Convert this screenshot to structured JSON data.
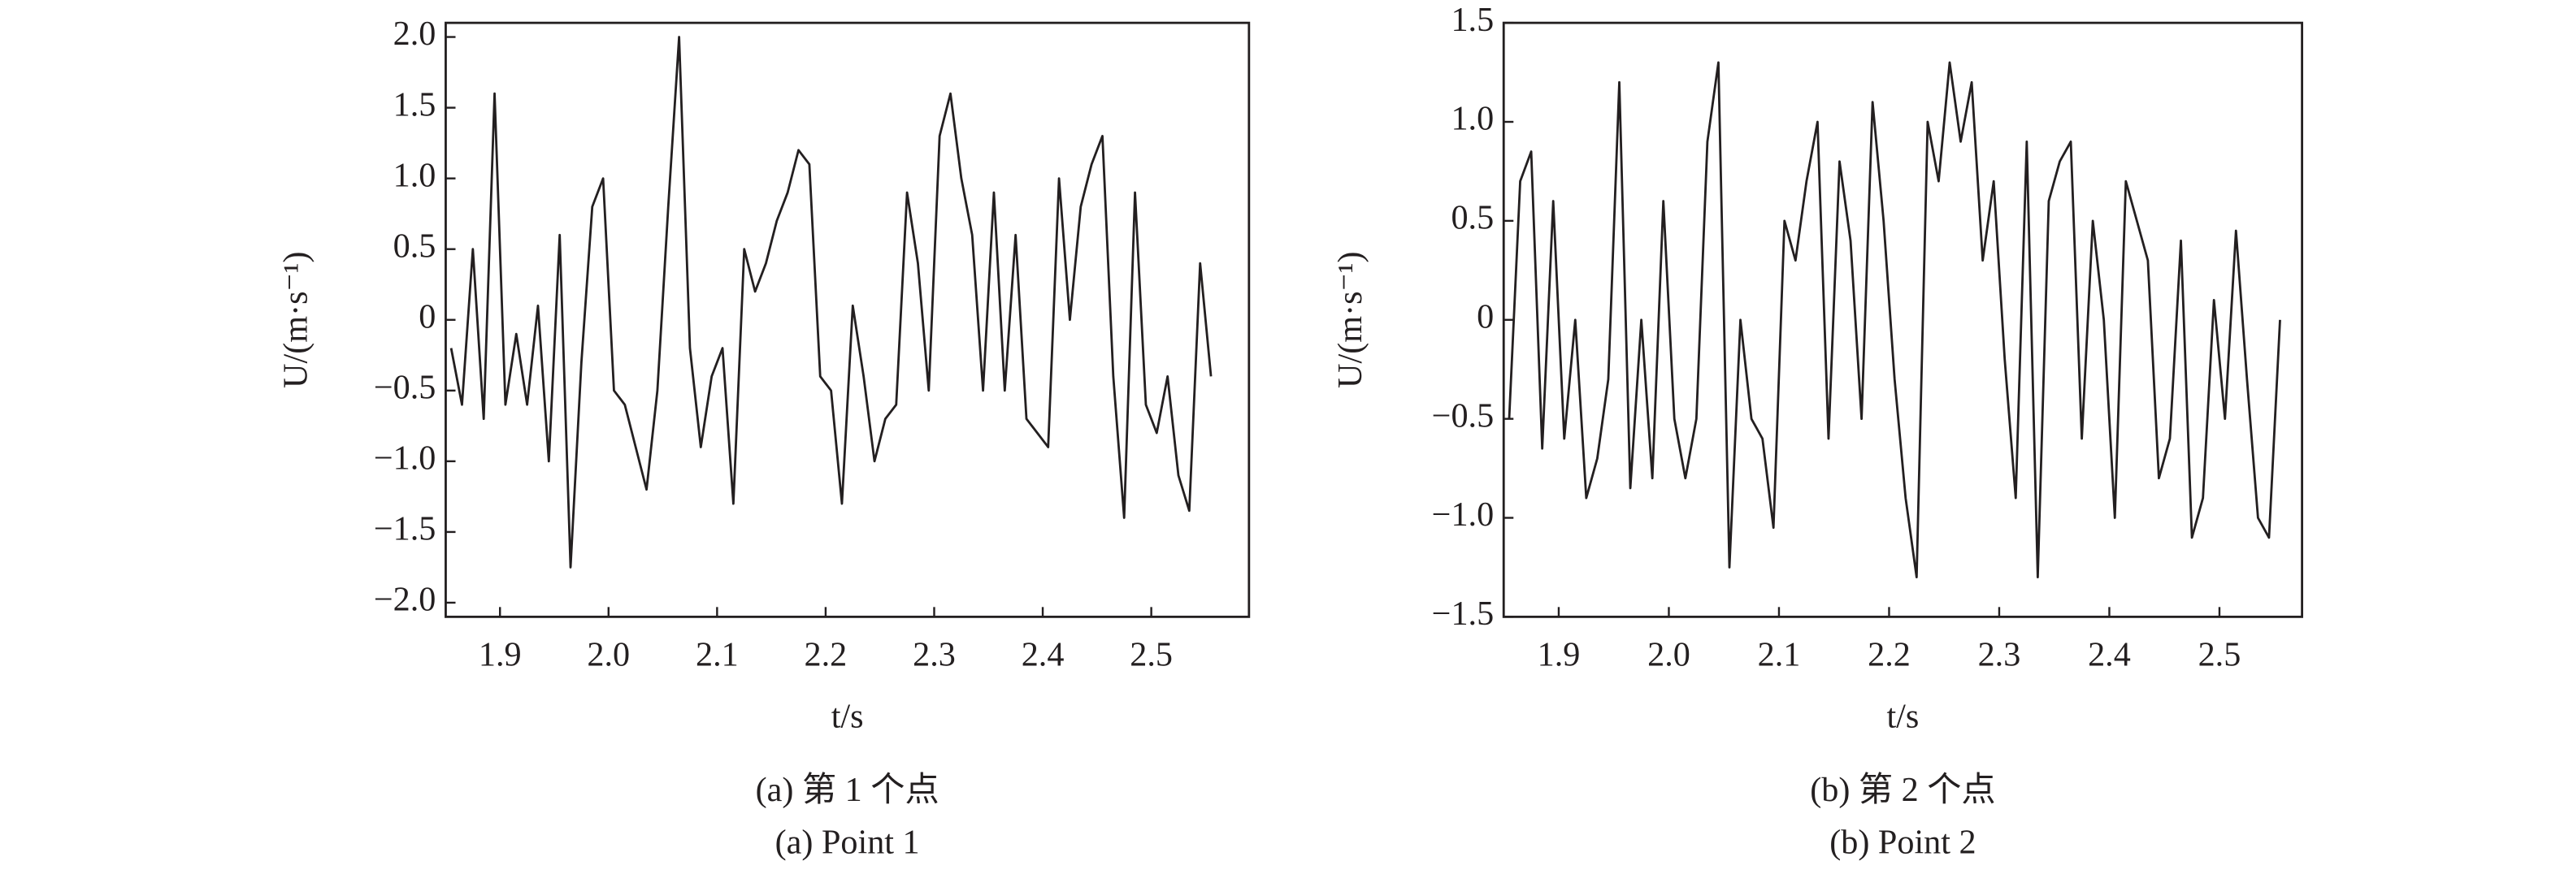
{
  "chart_data": [
    {
      "type": "line",
      "x": [
        1.855,
        1.865,
        1.875,
        1.885,
        1.895,
        1.905,
        1.915,
        1.925,
        1.935,
        1.945,
        1.955,
        1.965,
        1.975,
        1.985,
        1.995,
        2.005,
        2.015,
        2.025,
        2.035,
        2.045,
        2.055,
        2.065,
        2.075,
        2.085,
        2.095,
        2.105,
        2.115,
        2.125,
        2.135,
        2.145,
        2.155,
        2.165,
        2.175,
        2.185,
        2.195,
        2.205,
        2.215,
        2.225,
        2.235,
        2.245,
        2.255,
        2.265,
        2.275,
        2.285,
        2.295,
        2.305,
        2.315,
        2.325,
        2.335,
        2.345,
        2.355,
        2.365,
        2.375,
        2.385,
        2.395,
        2.405,
        2.415,
        2.425,
        2.435,
        2.445,
        2.455,
        2.465,
        2.475,
        2.485,
        2.495,
        2.505,
        2.515,
        2.525,
        2.535,
        2.545,
        2.555
      ],
      "values": [
        -0.2,
        -0.6,
        0.5,
        -0.7,
        1.6,
        -0.6,
        -0.1,
        -0.6,
        0.1,
        -1.0,
        0.6,
        -1.75,
        -0.3,
        0.8,
        1.0,
        -0.5,
        -0.6,
        -0.9,
        -1.2,
        -0.5,
        0.8,
        2.0,
        -0.2,
        -0.9,
        -0.4,
        -0.2,
        -1.3,
        0.5,
        0.2,
        0.4,
        0.7,
        0.9,
        1.2,
        1.1,
        -0.4,
        -0.5,
        -1.3,
        0.1,
        -0.4,
        -1.0,
        -0.7,
        -0.6,
        0.9,
        0.4,
        -0.5,
        1.3,
        1.6,
        1.0,
        0.6,
        -0.5,
        0.9,
        -0.5,
        0.6,
        -0.7,
        -0.8,
        -0.9,
        1.0,
        0.0,
        0.8,
        1.1,
        1.3,
        -0.4,
        -1.4,
        0.9,
        -0.6,
        -0.8,
        -0.4,
        -1.1,
        -1.35,
        0.4,
        -0.4
      ],
      "color": "#231f20",
      "xlim": [
        1.85,
        2.59
      ],
      "ylim": [
        -2.1,
        2.1
      ],
      "xticks": [
        1.9,
        {
          "value": 2,
          "label": "2.0"
        },
        2.1,
        2.2,
        2.3,
        2.4,
        2.5
      ],
      "yticks": [
        {
          "value": 2,
          "label": "2.0"
        },
        1.5,
        {
          "value": 1,
          "label": "1.0"
        },
        0.5,
        0,
        {
          "value": -0.5,
          "label": "−0.5"
        },
        {
          "value": -1,
          "label": "−1.0"
        },
        {
          "value": -1.5,
          "label": "−1.5"
        },
        {
          "value": -2,
          "label": "−2.0"
        }
      ],
      "ylabel": "U/(m·s⁻¹)",
      "xlabel": "t/s",
      "caption": "(a) 第 1 个点",
      "subcaption": "(a) Point 1"
    },
    {
      "type": "line",
      "x": [
        1.855,
        1.865,
        1.875,
        1.885,
        1.895,
        1.905,
        1.915,
        1.925,
        1.935,
        1.945,
        1.955,
        1.965,
        1.975,
        1.985,
        1.995,
        2.005,
        2.015,
        2.025,
        2.035,
        2.045,
        2.055,
        2.065,
        2.075,
        2.085,
        2.095,
        2.105,
        2.115,
        2.125,
        2.135,
        2.145,
        2.155,
        2.165,
        2.175,
        2.185,
        2.195,
        2.205,
        2.215,
        2.225,
        2.235,
        2.245,
        2.255,
        2.265,
        2.275,
        2.285,
        2.295,
        2.305,
        2.315,
        2.325,
        2.335,
        2.345,
        2.355,
        2.365,
        2.375,
        2.385,
        2.395,
        2.405,
        2.415,
        2.425,
        2.435,
        2.445,
        2.455,
        2.465,
        2.475,
        2.485,
        2.495,
        2.505,
        2.515,
        2.525,
        2.535,
        2.545,
        2.555
      ],
      "values": [
        -0.5,
        0.7,
        0.85,
        -0.65,
        0.6,
        -0.6,
        0.0,
        -0.9,
        -0.7,
        -0.3,
        1.2,
        -0.85,
        0.0,
        -0.8,
        0.6,
        -0.5,
        -0.8,
        -0.5,
        0.9,
        1.3,
        -1.25,
        0.0,
        -0.5,
        -0.6,
        -1.05,
        0.5,
        0.3,
        0.7,
        1.0,
        -0.6,
        0.8,
        0.4,
        -0.5,
        1.1,
        0.5,
        -0.3,
        -0.9,
        -1.3,
        1.0,
        0.7,
        1.3,
        0.9,
        1.2,
        0.3,
        0.7,
        -0.2,
        -0.9,
        0.9,
        -1.3,
        0.6,
        0.8,
        0.9,
        -0.6,
        0.5,
        0.0,
        -1.0,
        0.7,
        0.5,
        0.3,
        -0.8,
        -0.6,
        0.4,
        -1.1,
        -0.9,
        0.1,
        -0.5,
        0.45,
        -0.3,
        -1.0,
        -1.1,
        0.0
      ],
      "color": "#231f20",
      "xlim": [
        1.85,
        2.575
      ],
      "ylim": [
        -1.5,
        1.5
      ],
      "xticks": [
        1.9,
        {
          "value": 2,
          "label": "2.0"
        },
        2.1,
        2.2,
        2.3,
        2.4,
        2.5
      ],
      "yticks": [
        1.5,
        {
          "value": 1,
          "label": "1.0"
        },
        0.5,
        0,
        {
          "value": -0.5,
          "label": "−0.5"
        },
        {
          "value": -1,
          "label": "−1.0"
        },
        {
          "value": -1.5,
          "label": "−1.5"
        }
      ],
      "ylabel": "U/(m·s⁻¹)",
      "xlabel": "t/s",
      "caption": "(b) 第 2 个点",
      "subcaption": "(b) Point 2"
    }
  ]
}
